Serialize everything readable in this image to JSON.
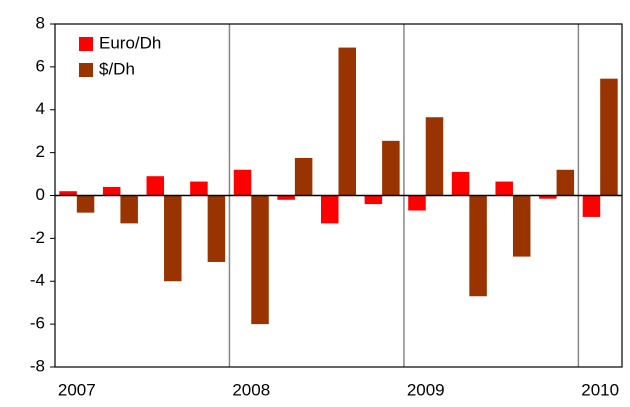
{
  "chart_data": {
    "type": "bar",
    "categories": [
      "2007",
      null,
      null,
      null,
      "2008",
      null,
      null,
      null,
      "2009",
      null,
      null,
      null,
      "2010"
    ],
    "series": [
      {
        "name": "Euro/Dh",
        "color": "#ff0000",
        "values": [
          0.2,
          0.4,
          0.9,
          0.65,
          1.2,
          -0.2,
          -1.3,
          -0.4,
          -0.7,
          1.1,
          0.65,
          -0.15,
          -1.0
        ]
      },
      {
        "name": "$/Dh",
        "color": "#993300",
        "values": [
          -0.8,
          -1.3,
          -4.0,
          -3.1,
          -6.0,
          1.75,
          6.9,
          2.55,
          3.65,
          -4.7,
          -2.85,
          1.2,
          5.45
        ]
      }
    ],
    "ylim": [
      -8,
      8
    ],
    "yticks": [
      -8,
      -6,
      -4,
      -2,
      0,
      2,
      4,
      6,
      8
    ],
    "grid": false,
    "legend": "top-left"
  }
}
